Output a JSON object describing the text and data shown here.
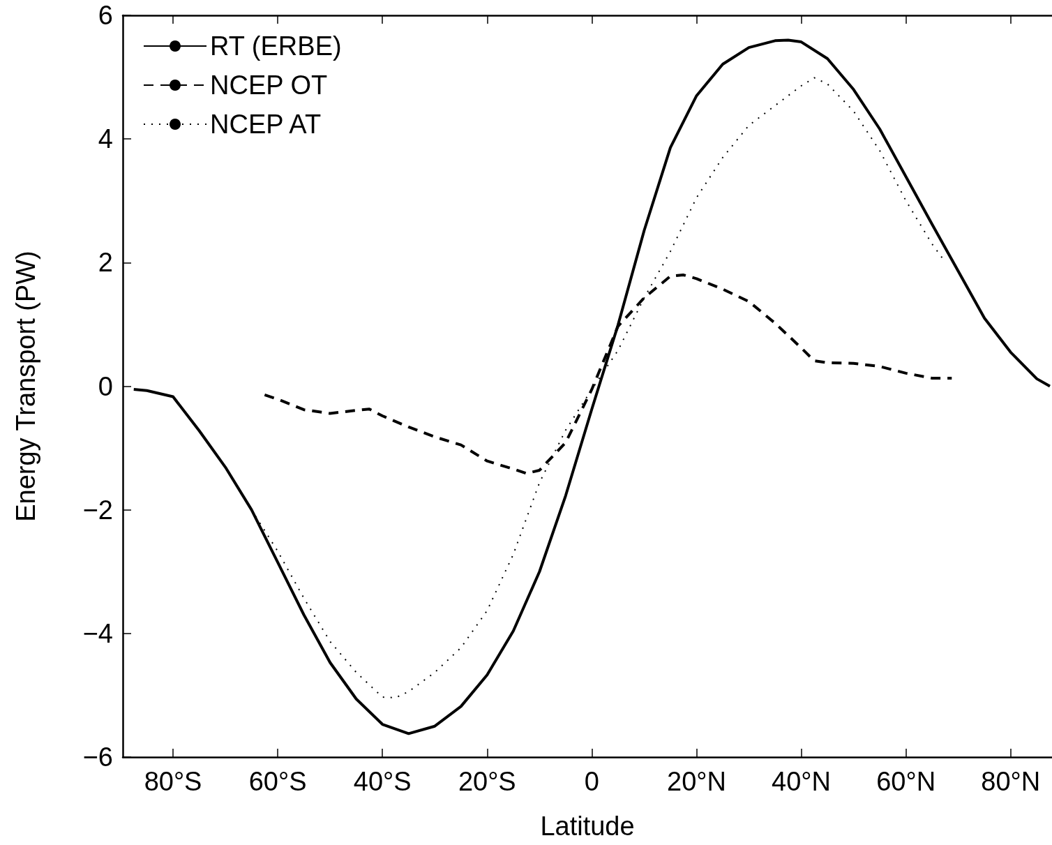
{
  "chart_data": {
    "type": "line",
    "xlabel": "Latitude",
    "ylabel": "Energy Transport (PW)",
    "xlim": [
      -89.6,
      87.9
    ],
    "ylim": [
      -6,
      6
    ],
    "xticks": [
      {
        "value": -80,
        "label": "80°S"
      },
      {
        "value": -60,
        "label": "60°S"
      },
      {
        "value": -40,
        "label": "40°S"
      },
      {
        "value": -20,
        "label": "20°S"
      },
      0,
      {
        "value": 20,
        "label": "20°N"
      },
      {
        "value": 40,
        "label": "40°N"
      },
      {
        "value": 60,
        "label": "60°N"
      },
      {
        "value": 80,
        "label": "80°N"
      }
    ],
    "yticks": [
      {
        "value": -6,
        "label": "−6"
      },
      {
        "value": -4,
        "label": "−4"
      },
      {
        "value": -2,
        "label": "−2"
      },
      0,
      2,
      4,
      6
    ],
    "grid": false,
    "legend": "top left",
    "marker": "none",
    "series": [
      {
        "name": "RT (ERBE)",
        "color": "#000000",
        "line_style": "solid",
        "x": [
          -87.5,
          -85,
          -80,
          -75,
          -70,
          -65,
          -60,
          -55,
          -50,
          -45,
          -40,
          -35,
          -30,
          -25,
          -20,
          -15,
          -10,
          -5,
          0,
          5,
          10,
          15,
          20,
          25,
          30,
          35,
          37.5,
          40,
          45,
          50,
          55,
          60,
          65,
          70,
          75,
          80,
          85,
          87.5
        ],
        "values": [
          -0.05,
          -0.07,
          -0.17,
          -0.72,
          -1.31,
          -2.0,
          -2.85,
          -3.7,
          -4.47,
          -5.06,
          -5.47,
          -5.62,
          -5.5,
          -5.18,
          -4.67,
          -3.96,
          -3.0,
          -1.77,
          -0.37,
          0.99,
          2.52,
          3.86,
          4.7,
          5.21,
          5.48,
          5.59,
          5.6,
          5.57,
          5.3,
          4.8,
          4.16,
          3.39,
          2.62,
          1.86,
          1.1,
          0.55,
          0.12,
          0.0
        ]
      },
      {
        "name": "NCEP OT",
        "color": "#000000",
        "line_style": "dashed",
        "x": [
          -62.5,
          -60,
          -55,
          -50,
          -45,
          -42.5,
          -40,
          -35,
          -30,
          -25,
          -20,
          -15,
          -12.5,
          -10,
          -5,
          0,
          5,
          10,
          15,
          17.5,
          20,
          25,
          30,
          35,
          40,
          42.5,
          45,
          50,
          55,
          60,
          65,
          68.75
        ],
        "values": [
          -0.14,
          -0.21,
          -0.38,
          -0.44,
          -0.39,
          -0.37,
          -0.48,
          -0.66,
          -0.82,
          -0.95,
          -1.21,
          -1.34,
          -1.41,
          -1.36,
          -0.91,
          -0.05,
          0.97,
          1.43,
          1.78,
          1.8,
          1.74,
          1.57,
          1.37,
          1.02,
          0.62,
          0.41,
          0.38,
          0.37,
          0.32,
          0.21,
          0.13,
          0.13
        ]
      },
      {
        "name": "NCEP AT",
        "color": "#000000",
        "line_style": "dotted",
        "x": [
          -65,
          -60,
          -55,
          -50,
          -45,
          -40,
          -37.5,
          -35,
          -30,
          -25,
          -20,
          -15,
          -10,
          -5,
          0,
          5,
          10,
          15,
          20,
          25,
          30,
          35,
          40,
          42.5,
          45,
          50,
          55,
          60,
          65,
          67.5
        ],
        "values": [
          -2.0,
          -2.67,
          -3.43,
          -4.13,
          -4.63,
          -5.03,
          -5.04,
          -4.94,
          -4.63,
          -4.23,
          -3.63,
          -2.72,
          -1.56,
          -0.71,
          -0.05,
          0.58,
          1.43,
          2.18,
          3.05,
          3.7,
          4.22,
          4.54,
          4.86,
          4.99,
          4.89,
          4.45,
          3.81,
          3.0,
          2.3,
          2.01
        ]
      }
    ]
  }
}
